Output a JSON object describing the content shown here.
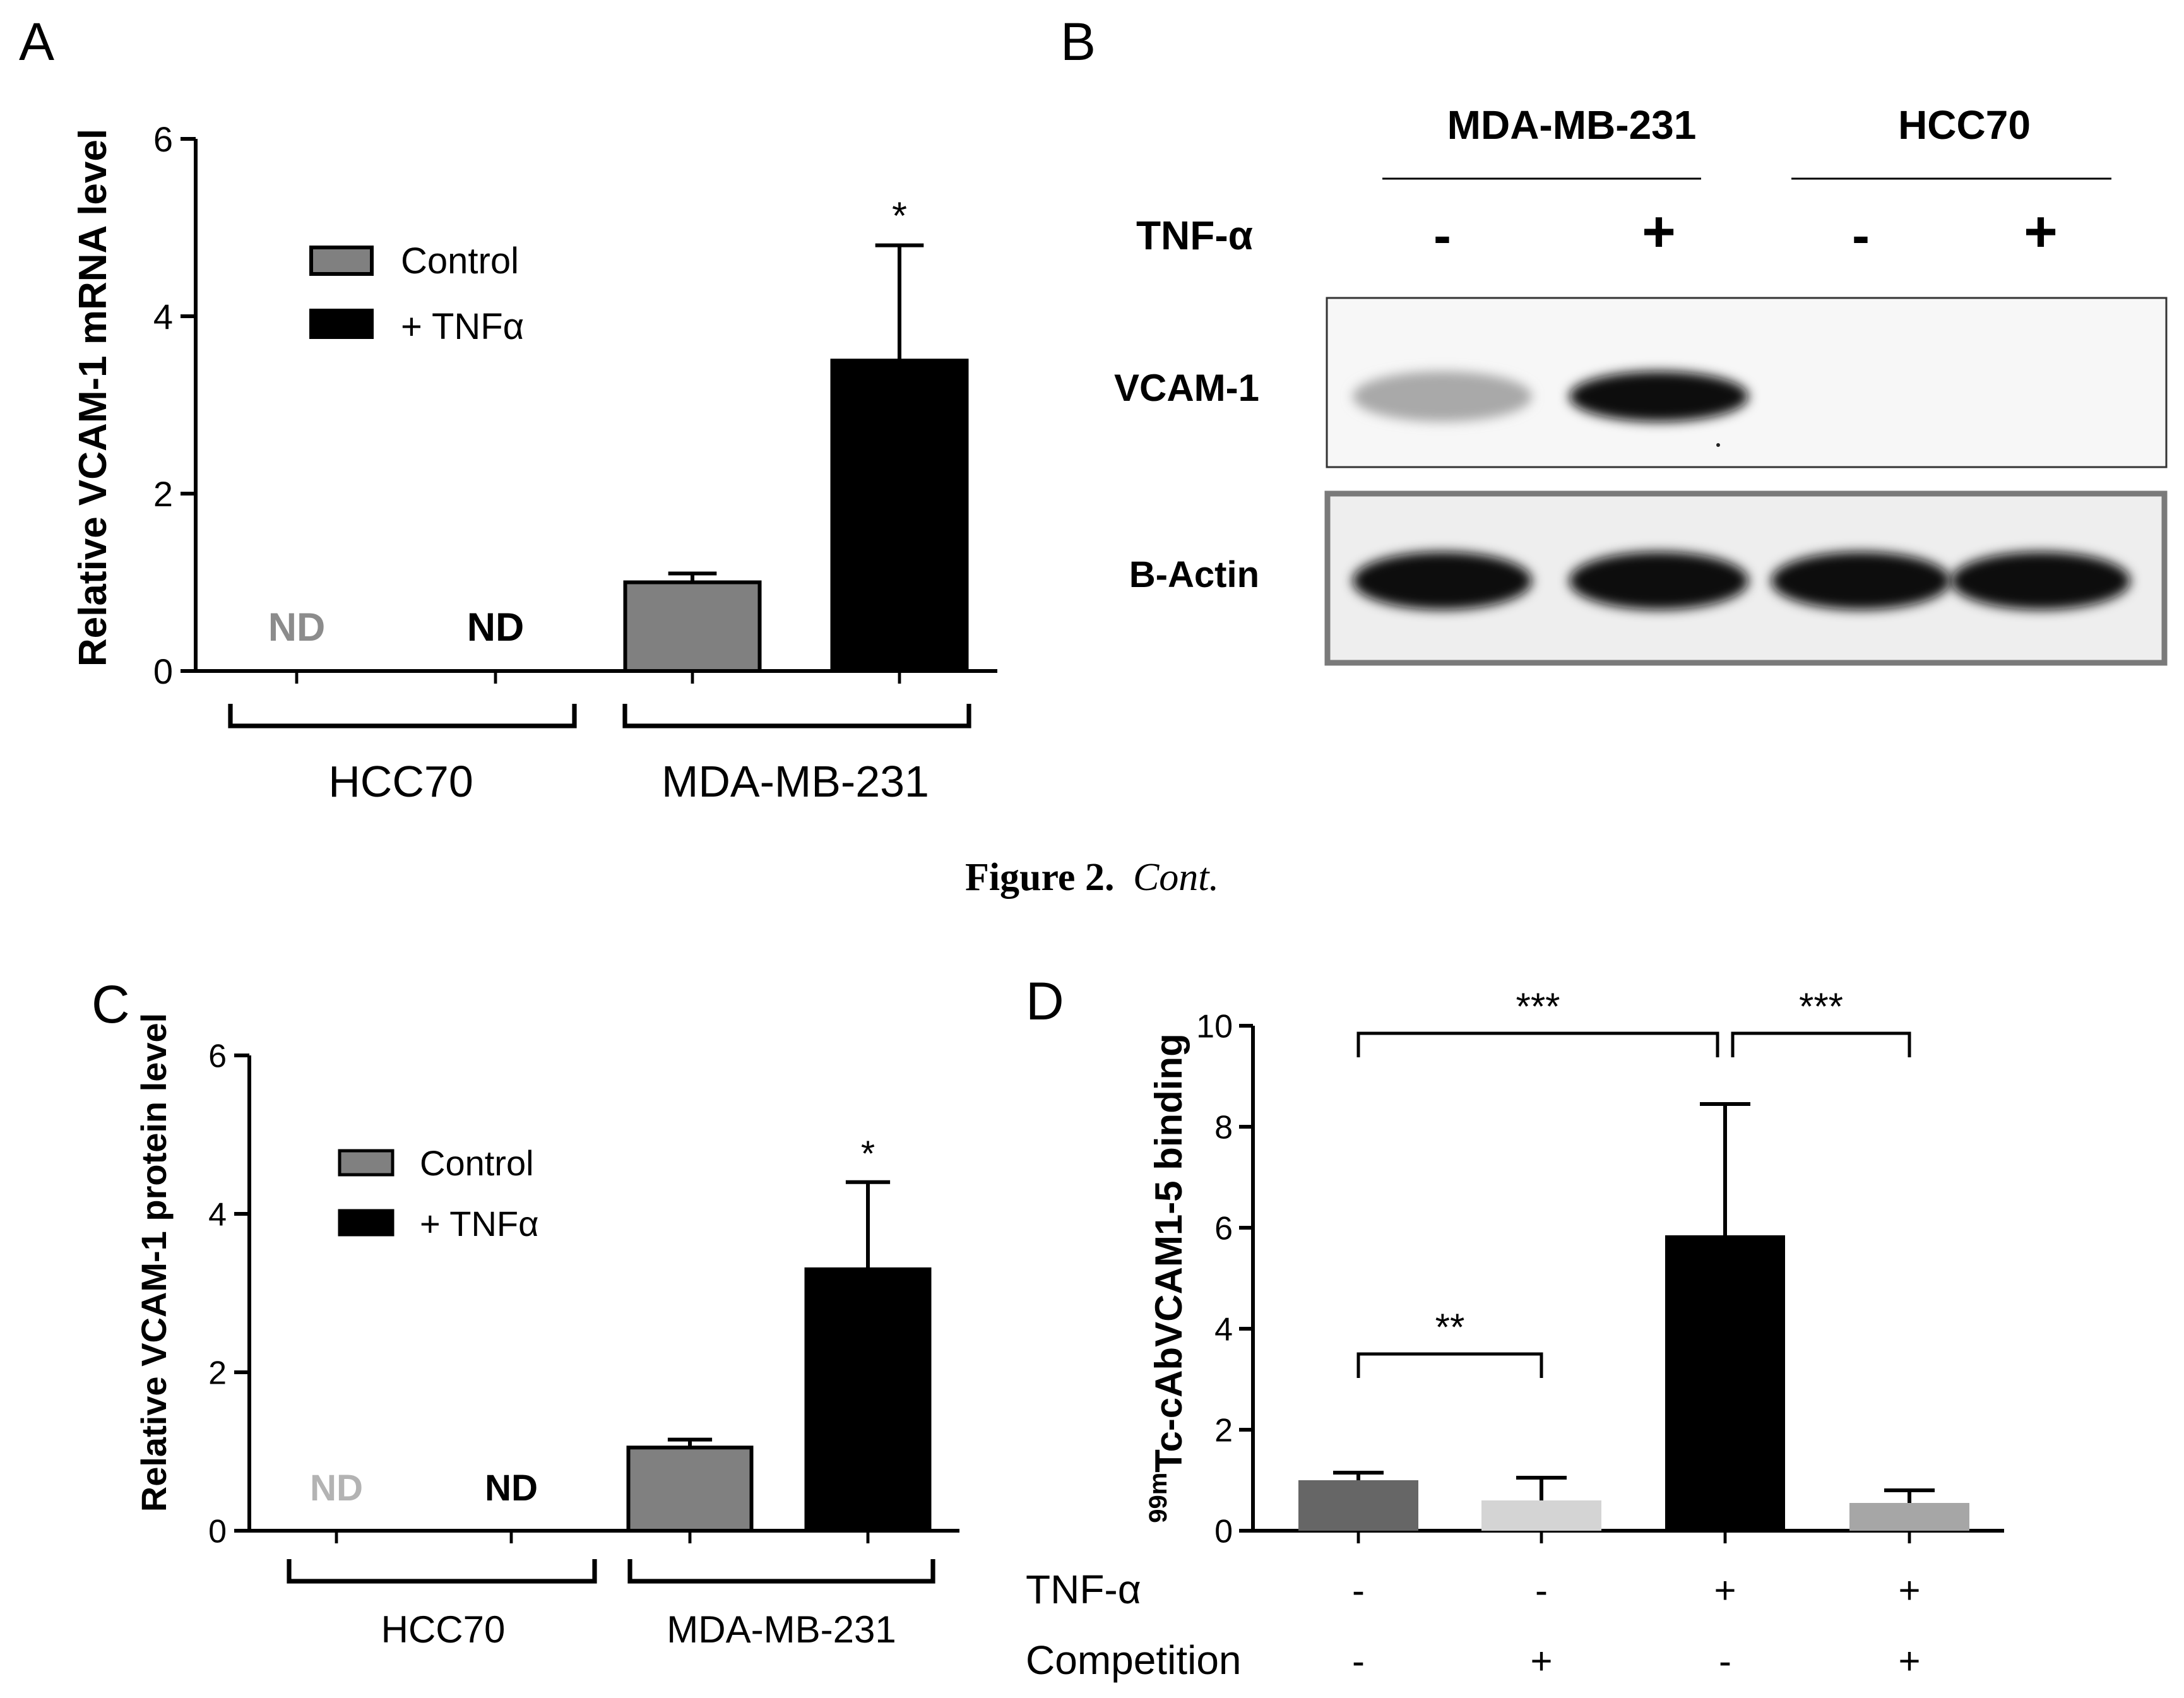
{
  "figure": {
    "caption_bold": "Figure 2.",
    "caption_italic": "Cont."
  },
  "chart_data": [
    {
      "panel": "A",
      "type": "bar",
      "ylabel": "Relative VCAM-1 mRNA level",
      "ylim": [
        0,
        6
      ],
      "yticks": [
        "0",
        "2",
        "4",
        "6"
      ],
      "groups": [
        "HCC70",
        "MDA-MB-231"
      ],
      "legend": {
        "placement": "top-left",
        "entries": [
          "Control",
          "+ TNFα"
        ]
      },
      "series": [
        {
          "name": "Control",
          "color": "#808080",
          "values": [
            null,
            1.0
          ],
          "errors": [
            null,
            0.1
          ],
          "nd": [
            "ND",
            null
          ],
          "nd_color": "#8c8c8c"
        },
        {
          "name": "+ TNFα",
          "color": "#000000",
          "values": [
            null,
            3.5
          ],
          "errors": [
            null,
            1.3
          ],
          "nd": [
            "ND",
            null
          ],
          "nd_color": "#000000"
        }
      ],
      "annotations": [
        {
          "text": "*",
          "group": 1,
          "series": 1
        }
      ]
    },
    {
      "panel": "B",
      "type": "western-blot",
      "cell_lines": [
        "MDA-MB-231",
        "HCC70"
      ],
      "treatment_label": "TNF-α",
      "lanes": [
        "-",
        "+",
        "-",
        "+"
      ],
      "rows": [
        {
          "label": "VCAM-1",
          "band_intensity": [
            0.35,
            1.0,
            0.0,
            0.0
          ]
        },
        {
          "label": "B-Actin",
          "band_intensity": [
            1.0,
            1.0,
            1.0,
            1.0
          ]
        }
      ]
    },
    {
      "panel": "C",
      "type": "bar",
      "ylabel": "Relative VCAM-1 protein level",
      "ylim": [
        0,
        6
      ],
      "yticks": [
        "0",
        "2",
        "4",
        "6"
      ],
      "groups": [
        "HCC70",
        "MDA-MB-231"
      ],
      "legend": {
        "placement": "top-left",
        "entries": [
          "Control",
          "+ TNFα"
        ]
      },
      "series": [
        {
          "name": "Control",
          "color": "#808080",
          "values": [
            null,
            1.05
          ],
          "errors": [
            null,
            0.1
          ],
          "nd": [
            "ND",
            null
          ],
          "nd_color": "#b3b3b3"
        },
        {
          "name": "+ TNFα",
          "color": "#000000",
          "values": [
            null,
            3.3
          ],
          "errors": [
            null,
            1.1
          ],
          "nd": [
            "ND",
            null
          ],
          "nd_color": "#000000"
        }
      ],
      "annotations": [
        {
          "text": "*",
          "group": 1,
          "series": 1
        }
      ]
    },
    {
      "panel": "D",
      "type": "bar",
      "ylabel_sup": "99m",
      "ylabel": "Tc-cAbVCAM1-5 binding",
      "ylim": [
        0,
        10
      ],
      "yticks": [
        "0",
        "2",
        "4",
        "6",
        "8",
        "10"
      ],
      "row_labels": [
        "TNF-α",
        "Competition"
      ],
      "bars": [
        {
          "value": 1.0,
          "error": 0.15,
          "color": "#666666",
          "tnf": "-",
          "competition": "-"
        },
        {
          "value": 0.6,
          "error": 0.45,
          "color": "#d4d4d4",
          "tnf": "-",
          "competition": "+"
        },
        {
          "value": 5.85,
          "error": 2.6,
          "color": "#000000",
          "tnf": "+",
          "competition": "-"
        },
        {
          "value": 0.55,
          "error": 0.25,
          "color": "#a6a6a6",
          "tnf": "+",
          "competition": "+"
        }
      ],
      "significance": [
        {
          "from": 0,
          "to": 2,
          "label": "***",
          "level": 10.0
        },
        {
          "from": 2,
          "to": 3,
          "label": "***",
          "level": 10.0
        },
        {
          "from": 0,
          "to": 1,
          "label": "**",
          "level": 3.5
        }
      ]
    }
  ]
}
